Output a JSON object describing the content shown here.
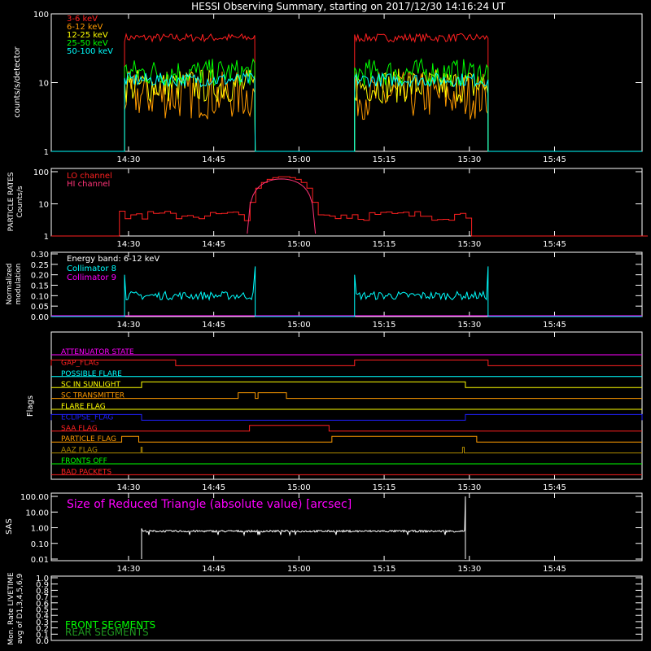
{
  "title": "HESSI Observing Summary, starting on 2017/12/30 14:16:24 UT",
  "colors": {
    "red": "#ff2020",
    "orange": "#ff9a00",
    "yellow": "#ffff00",
    "green": "#00ff00",
    "cyan": "#00ffff",
    "magenta": "#ff00ff",
    "blue": "#2020ff",
    "white": "#ffffff",
    "brown": "#b08a00",
    "pink": "#ff3377"
  },
  "time_axis": {
    "start_min": 0,
    "end_min": 104,
    "tick_labels": [
      "14:30",
      "14:45",
      "15:00",
      "15:15",
      "15:30",
      "15:45"
    ],
    "tick_minutes": [
      13.6,
      28.6,
      43.6,
      58.6,
      73.6,
      88.6
    ]
  },
  "chart_data": [
    {
      "id": "count_rates",
      "type": "line",
      "scale": "log",
      "ylabel": "counts/s/detector",
      "yticks": [
        "100",
        "10",
        "1"
      ],
      "ylim": [
        1,
        100
      ],
      "intervals": [
        [
          12.9,
          35.9
        ],
        [
          53.4,
          76.9
        ]
      ],
      "series": [
        {
          "name": "3-6 keV",
          "color": "red",
          "level": 45,
          "noise": 0.06
        },
        {
          "name": "6-12 keV",
          "color": "orange",
          "level": 6.5,
          "noise": 0.35
        },
        {
          "name": "12-25 keV",
          "color": "yellow",
          "level": 9,
          "noise": 0.25
        },
        {
          "name": "25-50 keV",
          "color": "green",
          "level": 14,
          "noise": 0.2
        },
        {
          "name": "50-100 keV",
          "color": "cyan",
          "level": 11,
          "noise": 0.1
        }
      ]
    },
    {
      "id": "particle_rates",
      "type": "line",
      "scale": "log",
      "ylabel_line1": "PARTICLE RATES",
      "ylabel_line2": "Counts/s",
      "yticks": [
        "100",
        "10",
        "1"
      ],
      "ylim": [
        1,
        100
      ],
      "series": [
        {
          "name": "LO channel",
          "color": "red"
        },
        {
          "name": "HI channel",
          "color": "pink"
        }
      ],
      "peak_interval": [
        34.5,
        46.5
      ],
      "peak_value": 70
    },
    {
      "id": "modulation",
      "type": "line",
      "ylabel_line1": "Normalized",
      "ylabel_line2": "modulation",
      "yticks": [
        "0.30",
        "0.25",
        "0.20",
        "0.15",
        "0.10",
        "0.05",
        "0.00"
      ],
      "ylim": [
        0,
        0.3
      ],
      "legend_title": "Energy band: 6-12 keV",
      "series": [
        {
          "name": "Collimator 8",
          "color": "cyan",
          "level": 0.1
        },
        {
          "name": "Collimator 9",
          "color": "magenta",
          "level": 0.0
        }
      ]
    },
    {
      "id": "flags",
      "type": "table",
      "ylabel": "Flags",
      "rows": [
        {
          "name": "ATTENUATOR STATE",
          "color": "magenta",
          "high": []
        },
        {
          "name": "GAP_FLAG",
          "color": "red",
          "high": [
            [
              0,
              21.9
            ],
            [
              53.4,
              76.9
            ]
          ]
        },
        {
          "name": "POSSIBLE FLARE",
          "color": "cyan",
          "high": []
        },
        {
          "name": "SC IN SUNLIGHT",
          "color": "yellow",
          "high": [
            [
              15.9,
              72.9
            ]
          ]
        },
        {
          "name": "SC TRANSMITTER",
          "color": "orange",
          "high": [
            [
              32.9,
              35.9
            ],
            [
              36.4,
              41.4
            ]
          ]
        },
        {
          "name": "FLARE FLAG",
          "color": "yellow",
          "high": []
        },
        {
          "name": "ECLIPSE_FLAG",
          "color": "blue",
          "high": [
            [
              0,
              15.9
            ],
            [
              72.9,
              104
            ]
          ]
        },
        {
          "name": "SAA FLAG",
          "color": "red",
          "high": [
            [
              34.9,
              48.9
            ]
          ]
        },
        {
          "name": "PARTICLE FLAG",
          "color": "orange",
          "high": [
            [
              12.4,
              15.4
            ],
            [
              49.4,
              74.9
            ]
          ]
        },
        {
          "name": "AAZ FLAG",
          "color": "brown",
          "high": [
            [
              15.8,
              16.0
            ],
            [
              72.4,
              72.7
            ]
          ]
        },
        {
          "name": "FRONTS OFF",
          "color": "green",
          "high": []
        },
        {
          "name": "BAD PACKETS",
          "color": "red",
          "high": []
        }
      ]
    },
    {
      "id": "sas",
      "type": "line",
      "scale": "log",
      "ylabel": "SAS",
      "title": "Size of Reduced Triangle (absolute value) [arcsec]",
      "yticks": [
        "100.00",
        "10.00",
        "1.00",
        "0.10",
        "0.01"
      ],
      "ylim": [
        0.01,
        100
      ],
      "interval": [
        15.9,
        72.9
      ],
      "level": 0.6
    },
    {
      "id": "livetime",
      "type": "line",
      "ylabel_line1": "Mon. Rate LIVETIME",
      "ylabel_line2": "avg of D1,3,4,5,6,9",
      "yticks": [
        "1.0",
        "0.9",
        "0.8",
        "0.7",
        "0.6",
        "0.5",
        "0.4",
        "0.3",
        "0.2",
        "0.1",
        "0.0"
      ],
      "ylim": [
        0,
        1
      ],
      "series": [
        {
          "name": "FRONT SEGMENTS",
          "color": "green"
        },
        {
          "name": "REAR SEGMENTS",
          "color": "#1f9a1f"
        }
      ]
    }
  ]
}
